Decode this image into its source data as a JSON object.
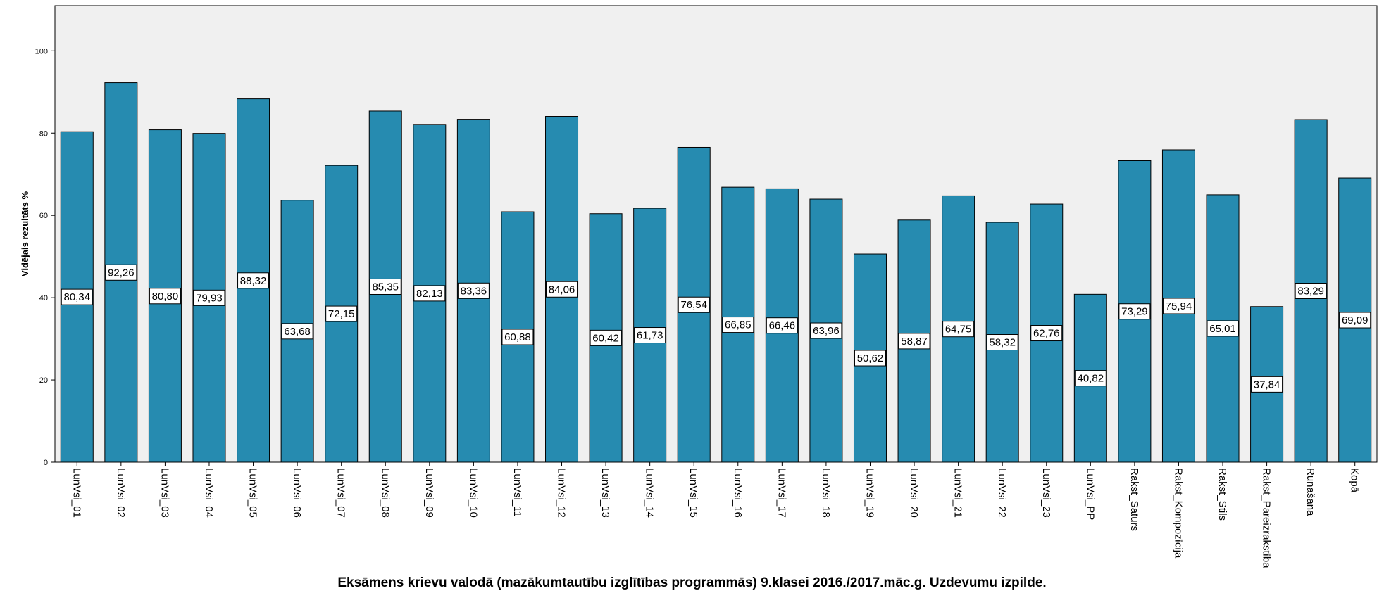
{
  "chart_data": {
    "type": "bar",
    "title": "Eksāmens krievu valodā (mazākumtautību izglītības programmās) 9.klasei 2016./2017.māc.g. Uzdevumu izpilde.",
    "xlabel": "",
    "ylabel": "Vidējais rezultāts %",
    "ylim": [
      0,
      111
    ],
    "yticks": [
      0,
      20,
      40,
      60,
      80,
      100
    ],
    "grid": false,
    "categories": [
      "LunVsi_01",
      "LunVsi_02",
      "LunVsi_03",
      "LunVsi_04",
      "LunVsi_05",
      "LunVsi_06",
      "LunVsi_07",
      "LunVsi_08",
      "LunVsi_09",
      "LunVsi_10",
      "LunVsi_11",
      "LunVsi_12",
      "LunVsi_13",
      "LunVsi_14",
      "LunVsi_15",
      "LunVsi_16",
      "LunVsi_17",
      "LunVsi_18",
      "LunVsi_19",
      "LunVsi_20",
      "LunVsi_21",
      "LunVsi_22",
      "LunVsi_23",
      "LunVsi_PP",
      "Rakst_Saturs",
      "Rakst_Kompozīcija",
      "Rakst_Stils",
      "Rakst_Pareizrakstība",
      "Runāšana",
      "Kopā"
    ],
    "values": [
      80.34,
      92.26,
      80.8,
      79.93,
      88.32,
      63.68,
      72.15,
      85.35,
      82.13,
      83.36,
      60.88,
      84.06,
      60.42,
      61.73,
      76.54,
      66.85,
      66.46,
      63.96,
      50.62,
      58.87,
      64.75,
      58.32,
      62.76,
      40.82,
      73.29,
      75.94,
      65.01,
      37.84,
      83.29,
      69.09
    ],
    "labels": [
      "80,34",
      "92,26",
      "80,80",
      "79,93",
      "88,32",
      "63,68",
      "72,15",
      "85,35",
      "82,13",
      "83,36",
      "60,88",
      "84,06",
      "60,42",
      "61,73",
      "76,54",
      "66,85",
      "66,46",
      "63,96",
      "50,62",
      "58,87",
      "64,75",
      "58,32",
      "62,76",
      "40,82",
      "73,29",
      "75,94",
      "65,01",
      "37,84",
      "83,29",
      "69,09"
    ],
    "bar_color": "#268bb0",
    "plot_background": "#f0f0f0"
  }
}
